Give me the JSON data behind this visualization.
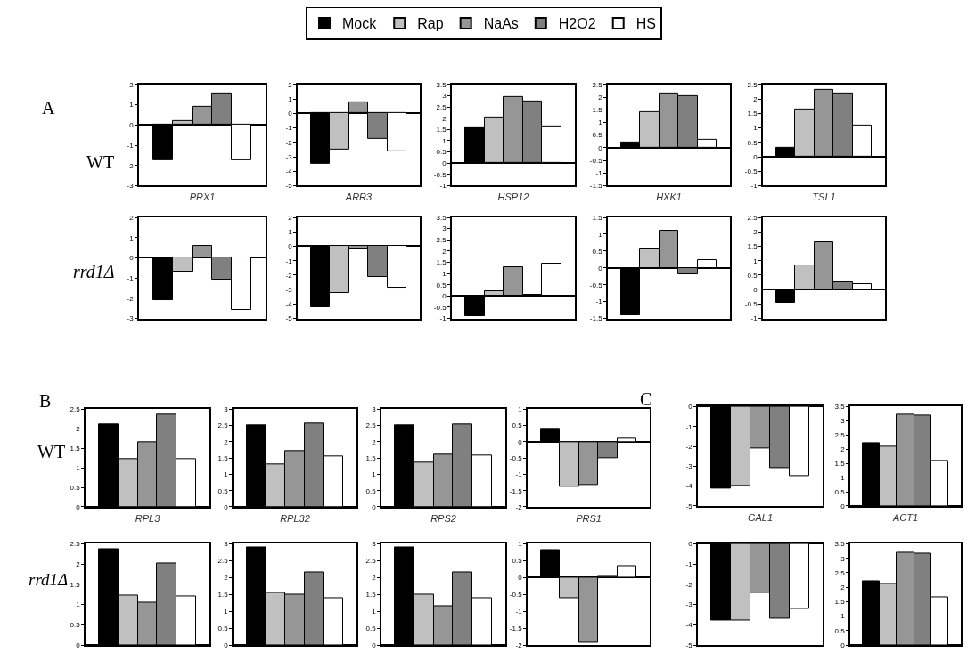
{
  "chart_data": [
    {
      "type": "bar",
      "xlabel": "PRX1",
      "categories": [
        null,
        null,
        null,
        null,
        null
      ],
      "legend": "top",
      "annotations": [
        "A",
        "WT"
      ],
      "ylim": [
        -3,
        2
      ],
      "yticks": [
        -3,
        -2,
        -1,
        0,
        1,
        2
      ],
      "series": [
        {
          "name": "Mock",
          "color": "#000000",
          "values": [
            -1.75,
            null,
            null,
            null,
            null
          ]
        },
        {
          "name": "Rap",
          "color": "#c0c0c0",
          "values": [
            null,
            0.2,
            null,
            null,
            null
          ]
        },
        {
          "name": "NaAs",
          "color": "#969696",
          "values": [
            null,
            null,
            0.88,
            null,
            null
          ]
        },
        {
          "name": "H2O2",
          "color": "#808080",
          "values": [
            null,
            null,
            null,
            1.55,
            null
          ]
        },
        {
          "name": "HS",
          "color": "#ffffff",
          "values": [
            null,
            null,
            null,
            null,
            -1.75
          ]
        }
      ]
    },
    {
      "type": "bar",
      "xlabel": "ARR3",
      "categories": [
        null,
        null,
        null,
        null,
        null
      ],
      "ylim": [
        -5,
        2
      ],
      "yticks": [
        -5,
        -4,
        -3,
        -2,
        -1,
        0,
        1,
        2
      ],
      "colors": [
        "#000000",
        "#c0c0c0",
        "#969696",
        "#808080",
        "#ffffff"
      ],
      "values": [
        -3.5,
        -2.5,
        0.75,
        -1.75,
        -2.65
      ]
    },
    {
      "type": "bar",
      "xlabel": "HSP12",
      "categories": [
        null,
        null,
        null,
        null,
        null
      ],
      "ylim": [
        -1,
        3.5
      ],
      "yticks": [
        -1,
        -0.5,
        0,
        0.5,
        1,
        1.5,
        2,
        2.5,
        3,
        3.5
      ],
      "colors": [
        "#000000",
        "#c0c0c0",
        "#969696",
        "#808080",
        "#ffffff"
      ],
      "values": [
        1.6,
        2.05,
        2.95,
        2.75,
        1.65
      ]
    },
    {
      "type": "bar",
      "xlabel": "HXK1",
      "categories": [
        null,
        null,
        null,
        null,
        null
      ],
      "ylim": [
        -1.5,
        2.5
      ],
      "yticks": [
        -1.5,
        -1,
        -0.5,
        0,
        0.5,
        1,
        1.5,
        2,
        2.5
      ],
      "colors": [
        "#000000",
        "#c0c0c0",
        "#969696",
        "#808080",
        "#ffffff"
      ],
      "values": [
        0.2,
        1.4,
        2.15,
        2.05,
        0.3
      ]
    },
    {
      "type": "bar",
      "xlabel": "TSL1",
      "categories": [
        null,
        null,
        null,
        null,
        null
      ],
      "ylim": [
        -1,
        2.5
      ],
      "yticks": [
        -1,
        -0.5,
        0,
        0.5,
        1,
        1.5,
        2,
        2.5
      ],
      "colors": [
        "#000000",
        "#c0c0c0",
        "#969696",
        "#808080",
        "#ffffff"
      ],
      "values": [
        0.3,
        1.65,
        2.3,
        2.2,
        1.08
      ]
    },
    {
      "type": "bar",
      "categories": [
        null,
        null,
        null,
        null,
        null
      ],
      "annotations": [
        "rrd1Δ"
      ],
      "ylim": [
        -3,
        2
      ],
      "yticks": [
        -3,
        -2,
        -1,
        0,
        1,
        2
      ],
      "colors": [
        "#000000",
        "#c0c0c0",
        "#969696",
        "#808080",
        "#ffffff"
      ],
      "values": [
        -2.08,
        -0.7,
        0.57,
        -1.08,
        -2.58
      ]
    },
    {
      "type": "bar",
      "categories": [
        null,
        null,
        null,
        null,
        null
      ],
      "ylim": [
        -5,
        2
      ],
      "yticks": [
        -5,
        -4,
        -3,
        -2,
        -1,
        0,
        1,
        2
      ],
      "colors": [
        "#000000",
        "#c0c0c0",
        "#969696",
        "#808080",
        "#ffffff"
      ],
      "values": [
        -4.2,
        -3.25,
        -0.15,
        -2.15,
        -2.85
      ]
    },
    {
      "type": "bar",
      "categories": [
        null,
        null,
        null,
        null,
        null
      ],
      "ylim": [
        -1,
        3.5
      ],
      "yticks": [
        -1,
        -0.5,
        0,
        0.5,
        1,
        1.5,
        2,
        2.5,
        3,
        3.5
      ],
      "colors": [
        "#000000",
        "#c0c0c0",
        "#969696",
        "#808080",
        "#ffffff"
      ],
      "values": [
        -0.9,
        0.22,
        1.3,
        0.05,
        1.45
      ]
    },
    {
      "type": "bar",
      "categories": [
        null,
        null,
        null,
        null,
        null
      ],
      "ylim": [
        -1.5,
        1.5
      ],
      "yticks": [
        -1.5,
        -1,
        -0.5,
        0,
        0.5,
        1,
        1.5
      ],
      "colors": [
        "#000000",
        "#c0c0c0",
        "#969696",
        "#808080",
        "#ffffff"
      ],
      "values": [
        -1.4,
        0.58,
        1.1,
        -0.2,
        0.23
      ]
    },
    {
      "type": "bar",
      "categories": [
        null,
        null,
        null,
        null,
        null
      ],
      "ylim": [
        -1,
        2.5
      ],
      "yticks": [
        -1,
        -0.5,
        0,
        0.5,
        1,
        1.5,
        2,
        2.5
      ],
      "colors": [
        "#000000",
        "#c0c0c0",
        "#969696",
        "#808080",
        "#ffffff"
      ],
      "values": [
        -0.45,
        0.83,
        1.63,
        0.28,
        0.18
      ]
    },
    {
      "type": "bar",
      "xlabel": "RPL3",
      "categories": [
        null,
        null,
        null,
        null,
        null
      ],
      "annotations": [
        "B",
        "WT"
      ],
      "ylim": [
        0,
        2.5
      ],
      "yticks": [
        0,
        0.5,
        1,
        1.5,
        2,
        2.5
      ],
      "colors": [
        "#000000",
        "#c0c0c0",
        "#969696",
        "#808080",
        "#ffffff"
      ],
      "values": [
        2.12,
        1.22,
        1.65,
        2.37,
        1.22
      ]
    },
    {
      "type": "bar",
      "xlabel": "RPL32",
      "categories": [
        null,
        null,
        null,
        null,
        null
      ],
      "ylim": [
        0,
        3
      ],
      "yticks": [
        0,
        0.5,
        1,
        1.5,
        2,
        2.5,
        3
      ],
      "colors": [
        "#000000",
        "#c0c0c0",
        "#969696",
        "#808080",
        "#ffffff"
      ],
      "values": [
        2.5,
        1.3,
        1.72,
        2.57,
        1.55
      ]
    },
    {
      "type": "bar",
      "xlabel": "RPS2",
      "categories": [
        null,
        null,
        null,
        null,
        null
      ],
      "ylim": [
        0,
        3
      ],
      "yticks": [
        0,
        0.5,
        1,
        1.5,
        2,
        2.5,
        3
      ],
      "colors": [
        "#000000",
        "#c0c0c0",
        "#969696",
        "#808080",
        "#ffffff"
      ],
      "values": [
        2.5,
        1.37,
        1.6,
        2.53,
        1.57
      ]
    },
    {
      "type": "bar",
      "xlabel": "PRS1",
      "categories": [
        null,
        null,
        null,
        null,
        null
      ],
      "ylim": [
        -2,
        1
      ],
      "yticks": [
        -2,
        -1.5,
        -1,
        -0.5,
        0,
        0.5,
        1
      ],
      "colors": [
        "#000000",
        "#c0c0c0",
        "#969696",
        "#808080",
        "#ffffff"
      ],
      "values": [
        0.4,
        -1.38,
        -1.32,
        -0.5,
        0.1
      ]
    },
    {
      "type": "bar",
      "categories": [
        null,
        null,
        null,
        null,
        null
      ],
      "annotations": [
        "rrd1Δ"
      ],
      "ylim": [
        0,
        2.5
      ],
      "yticks": [
        0,
        0.5,
        1,
        1.5,
        2,
        2.5
      ],
      "colors": [
        "#000000",
        "#c0c0c0",
        "#969696",
        "#808080",
        "#ffffff"
      ],
      "values": [
        2.37,
        1.23,
        1.05,
        2.02,
        1.2
      ]
    },
    {
      "type": "bar",
      "categories": [
        null,
        null,
        null,
        null,
        null
      ],
      "ylim": [
        0,
        3
      ],
      "yticks": [
        0,
        0.5,
        1,
        1.5,
        2,
        2.5,
        3
      ],
      "colors": [
        "#000000",
        "#c0c0c0",
        "#969696",
        "#808080",
        "#ffffff"
      ],
      "values": [
        2.9,
        1.55,
        1.5,
        2.15,
        1.38
      ]
    },
    {
      "type": "bar",
      "categories": [
        null,
        null,
        null,
        null,
        null
      ],
      "ylim": [
        0,
        3
      ],
      "yticks": [
        0,
        0.5,
        1,
        1.5,
        2,
        2.5,
        3
      ],
      "colors": [
        "#000000",
        "#c0c0c0",
        "#969696",
        "#808080",
        "#ffffff"
      ],
      "values": [
        2.9,
        1.5,
        1.15,
        2.15,
        1.38
      ]
    },
    {
      "type": "bar",
      "categories": [
        null,
        null,
        null,
        null,
        null
      ],
      "ylim": [
        -2,
        1
      ],
      "yticks": [
        -2,
        -1.5,
        -1,
        -0.5,
        0,
        0.5,
        1
      ],
      "colors": [
        "#000000",
        "#c0c0c0",
        "#969696",
        "#808080",
        "#ffffff"
      ],
      "values": [
        0.82,
        -0.62,
        -1.92,
        0.03,
        0.33
      ]
    },
    {
      "type": "bar",
      "xlabel": "GAL1",
      "categories": [
        null,
        null,
        null,
        null,
        null
      ],
      "annotations": [
        "C"
      ],
      "ylim": [
        -5,
        0
      ],
      "yticks": [
        -5,
        -4,
        -3,
        -2,
        -1,
        0
      ],
      "colors": [
        "#000000",
        "#c0c0c0",
        "#969696",
        "#808080",
        "#ffffff"
      ],
      "values": [
        -4.1,
        -4.0,
        -2.1,
        -3.1,
        -3.5
      ]
    },
    {
      "type": "bar",
      "xlabel": "ACT1",
      "categories": [
        null,
        null,
        null,
        null,
        null
      ],
      "ylim": [
        0,
        3.5
      ],
      "yticks": [
        0,
        0.5,
        1,
        1.5,
        2,
        2.5,
        3,
        3.5
      ],
      "colors": [
        "#000000",
        "#c0c0c0",
        "#969696",
        "#808080",
        "#ffffff"
      ],
      "values": [
        2.2,
        2.1,
        3.22,
        3.2,
        1.6
      ]
    },
    {
      "type": "bar",
      "categories": [
        null,
        null,
        null,
        null,
        null
      ],
      "ylim": [
        -5,
        0
      ],
      "yticks": [
        -5,
        -4,
        -3,
        -2,
        -1,
        0
      ],
      "colors": [
        "#000000",
        "#c0c0c0",
        "#969696",
        "#808080",
        "#ffffff"
      ],
      "values": [
        -3.8,
        -3.8,
        -2.4,
        -3.7,
        -3.2
      ]
    },
    {
      "type": "bar",
      "categories": [
        null,
        null,
        null,
        null,
        null
      ],
      "ylim": [
        0,
        3.5
      ],
      "yticks": [
        0,
        0.5,
        1,
        1.5,
        2,
        2.5,
        3,
        3.5
      ],
      "colors": [
        "#000000",
        "#c0c0c0",
        "#969696",
        "#808080",
        "#ffffff"
      ],
      "values": [
        2.22,
        2.1,
        3.2,
        3.17,
        1.65
      ]
    }
  ]
}
